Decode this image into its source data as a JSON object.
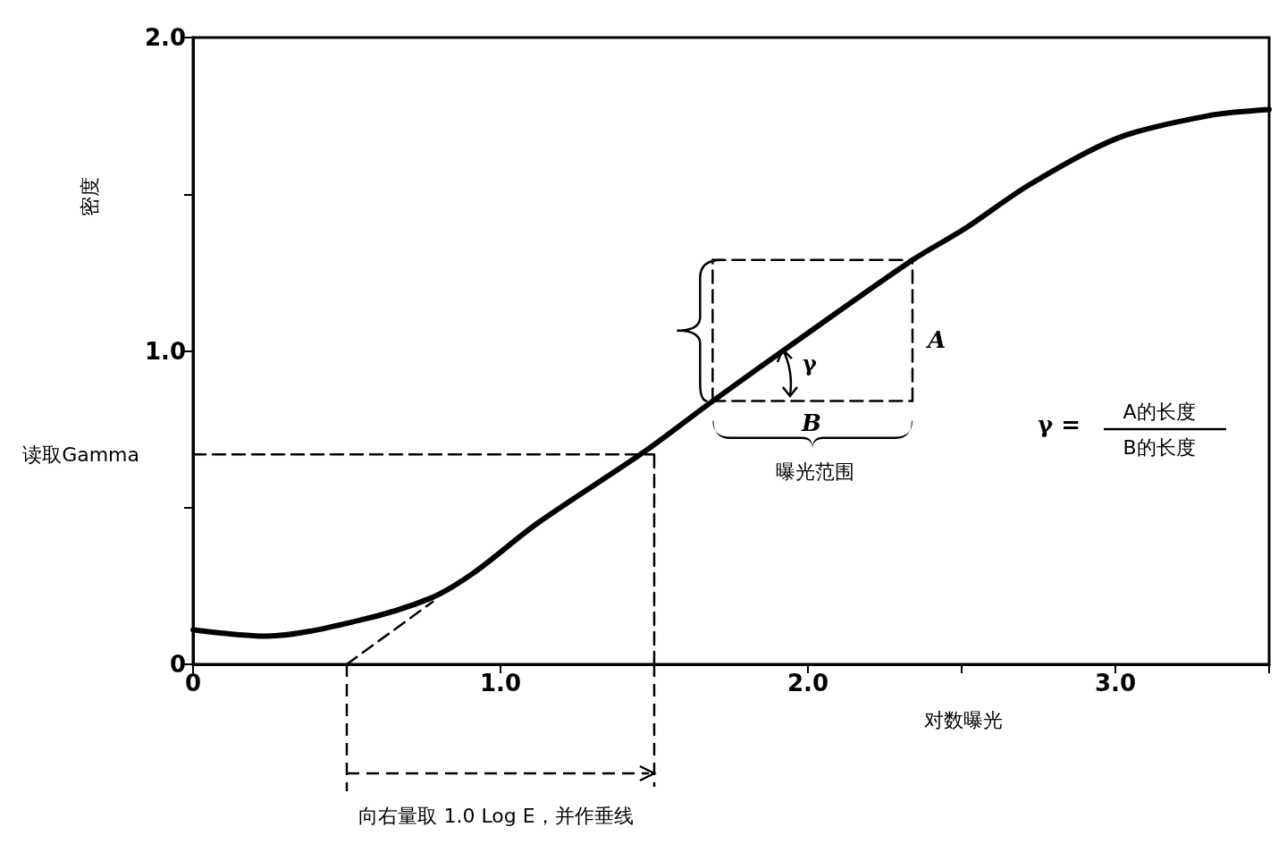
{
  "chart_data": {
    "type": "line",
    "xlabel": "对数曝光",
    "ylabel": "密度",
    "xlim": [
      0,
      3.5
    ],
    "ylim": [
      0,
      2
    ],
    "xticks": [
      0,
      {
        "value": 0.5,
        "label": null
      },
      {
        "value": 1,
        "label": "1.0"
      },
      {
        "value": 1.5,
        "label": null
      },
      {
        "value": 2,
        "label": "2.0"
      },
      {
        "value": 2.5,
        "label": null
      },
      {
        "value": 3,
        "label": "3.0"
      },
      {
        "value": 3.5,
        "label": null
      }
    ],
    "yticks": [
      0,
      {
        "value": 0.5,
        "label": null
      },
      {
        "value": 1,
        "label": "1.0"
      },
      {
        "value": 1.5,
        "label": null
      },
      {
        "value": 2,
        "label": "2.0"
      }
    ],
    "grid": false,
    "marker": "none",
    "series": [
      {
        "color": "#000000",
        "line_style": "solid",
        "x": [
          0,
          0.24,
          0.54,
          0.77,
          0.91,
          1.12,
          1.47,
          1.69,
          1.99,
          2.34,
          2.51,
          2.72,
          3.01,
          3.3,
          3.5
        ],
        "values": [
          0.11,
          0.09,
          0.14,
          0.21,
          0.29,
          0.45,
          0.68,
          0.84,
          1.05,
          1.29,
          1.39,
          1.53,
          1.68,
          1.75,
          1.77
        ]
      },
      {
        "color": "#000000",
        "line_style": "dashed",
        "x": [
          0.5,
          0.78
        ],
        "values": [
          0,
          0.2
        ]
      },
      {
        "color": "#000000",
        "line_style": "dashed",
        "x": [
          0,
          1.5
        ],
        "values": [
          0.67,
          0.67
        ]
      },
      {
        "color": "#000000",
        "line_style": "dashed",
        "x": [
          1.5,
          1.5
        ],
        "values": [
          0,
          0.67
        ]
      },
      {
        "color": "#000000",
        "line_style": "dashed",
        "x": [
          1.69,
          2.34
        ],
        "values": [
          1.29,
          1.29
        ]
      },
      {
        "color": "#000000",
        "line_style": "dashed",
        "x": [
          1.69,
          2.34
        ],
        "values": [
          0.84,
          0.84
        ]
      },
      {
        "color": "#000000",
        "line_style": "dashed",
        "x": [
          1.69,
          1.69
        ],
        "values": [
          0.84,
          1.29
        ]
      },
      {
        "color": "#000000",
        "line_style": "dashed",
        "x": [
          2.34,
          2.34
        ],
        "values": [
          0.84,
          1.29
        ]
      }
    ],
    "annotations": [
      {
        "text": "读取Gamma",
        "x": 0,
        "y": 0.67
      },
      "向右量取 1.0 Log E，并作垂线",
      "A",
      "B",
      {
        "text": "γ",
        "x": 1.93,
        "y": 1.01
      },
      "曝光范围",
      "γ =",
      "A的长度",
      "B的长度"
    ]
  }
}
